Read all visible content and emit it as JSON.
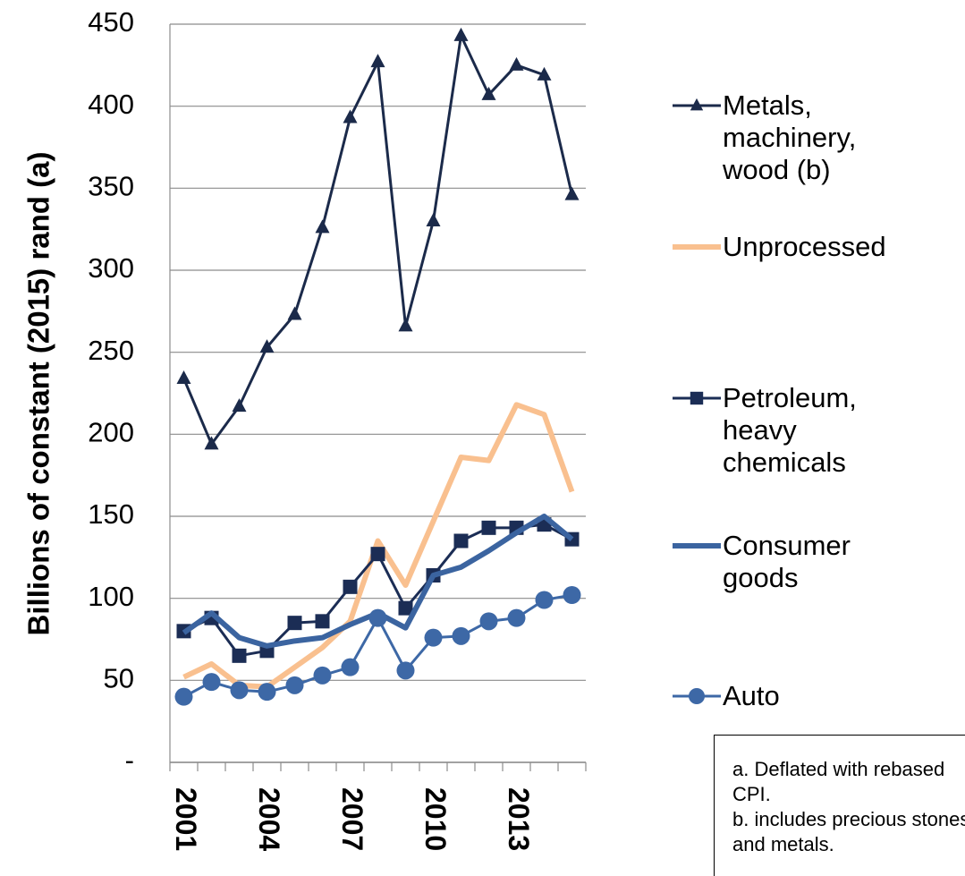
{
  "chart_data": {
    "type": "line",
    "y_label": "Billions of constant (2015) rand (a)",
    "categories": [
      "2001",
      null,
      null,
      "2004",
      null,
      null,
      "2007",
      null,
      null,
      "2010",
      null,
      null,
      "2013",
      null,
      null
    ],
    "series": [
      {
        "name": "Metals, machinery, wood (b)",
        "color": "#1b2a4a",
        "marker": "triangle",
        "width": 3,
        "values": [
          234,
          194,
          217,
          253,
          273,
          326,
          393,
          427,
          266,
          330,
          443,
          407,
          425,
          419,
          346
        ]
      },
      {
        "name": "Unprocessed",
        "color": "#f9c08f",
        "marker": "none",
        "width": 6,
        "values": [
          52,
          60,
          47,
          46,
          58,
          70,
          86,
          135,
          108,
          147,
          186,
          184,
          218,
          212,
          165
        ]
      },
      {
        "name": "Petroleum, heavy chemicals",
        "color": "#1b2d55",
        "marker": "square",
        "width": 3,
        "values": [
          80,
          88,
          65,
          68,
          85,
          86,
          107,
          127,
          94,
          114,
          135,
          143,
          143,
          145,
          136
        ]
      },
      {
        "name": "Consumer goods",
        "color": "#3b64a0",
        "marker": "none",
        "width": 6,
        "values": [
          79,
          91,
          76,
          71,
          74,
          76,
          84,
          91,
          82,
          114,
          119,
          129,
          140,
          150,
          136
        ]
      },
      {
        "name": "Auto",
        "color": "#3d68a6",
        "marker": "circle",
        "width": 3,
        "values": [
          40,
          49,
          44,
          43,
          47,
          53,
          58,
          88,
          56,
          76,
          77,
          86,
          88,
          99,
          102
        ]
      }
    ],
    "ylim": [
      0,
      450
    ],
    "yticks": [
      {
        "value": 0,
        "label": "-"
      },
      50,
      100,
      150,
      200,
      250,
      300,
      350,
      400,
      450
    ],
    "grid": true,
    "legend": "right",
    "annotations": [
      "a. Deflated with rebased CPI.",
      "b. includes precious stones and metals."
    ]
  }
}
